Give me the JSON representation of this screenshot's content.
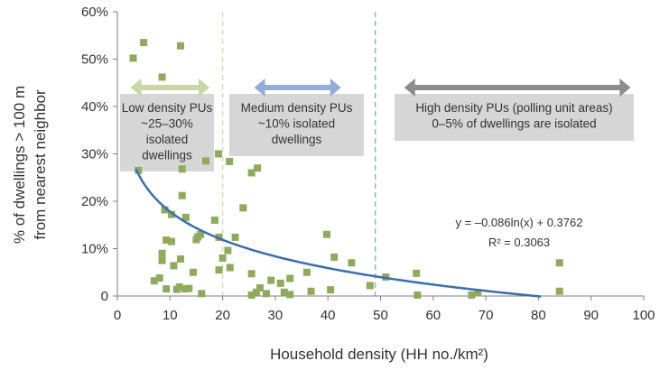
{
  "chart_data": {
    "type": "scatter",
    "xlabel": "Household density (HH no./km²)",
    "ylabel": [
      "% of dwellings > 100 m",
      "from nearest neighbor"
    ],
    "xlim": [
      0,
      100
    ],
    "ylim": [
      0,
      60
    ],
    "x_ticks": [
      "0",
      "10",
      "20",
      "30",
      "40",
      "50",
      "60",
      "70",
      "80",
      "90",
      "100"
    ],
    "y_ticks": [
      "0",
      "10%",
      "20%",
      "30%",
      "40%",
      "50%",
      "60%"
    ],
    "grid": false,
    "marker_color": "#8FAA5F",
    "points": [
      [
        3,
        50.2
      ],
      [
        5,
        53.5
      ],
      [
        8.5,
        46.2
      ],
      [
        12,
        52.8
      ],
      [
        4,
        26.5
      ],
      [
        12.3,
        26.8
      ],
      [
        12.3,
        21.2
      ],
      [
        9,
        18.2
      ],
      [
        10.3,
        17.2
      ],
      [
        13,
        16.6
      ],
      [
        9.3,
        11.8
      ],
      [
        8.5,
        9
      ],
      [
        8.5,
        7.5
      ],
      [
        10.3,
        11.5
      ],
      [
        15,
        11.9
      ],
      [
        15.8,
        13
      ],
      [
        12,
        7.8
      ],
      [
        8,
        3.8
      ],
      [
        9.3,
        1.5
      ],
      [
        10.7,
        6.4
      ],
      [
        11.8,
        1.9
      ],
      [
        12.8,
        1.5
      ],
      [
        13.6,
        1.6
      ],
      [
        14.4,
        5
      ],
      [
        15.3,
        12.5
      ],
      [
        16,
        0.5
      ],
      [
        7,
        3.2
      ],
      [
        11.3,
        1.4
      ],
      [
        16.8,
        28.5
      ],
      [
        19.2,
        30
      ],
      [
        21.3,
        28.4
      ],
      [
        23.9,
        18.6
      ],
      [
        18.5,
        16
      ],
      [
        19.3,
        12.4
      ],
      [
        20,
        8
      ],
      [
        21,
        9.6
      ],
      [
        22.4,
        12.4
      ],
      [
        19.3,
        5.5
      ],
      [
        21.4,
        6
      ],
      [
        25.5,
        26
      ],
      [
        26.6,
        27
      ],
      [
        25.5,
        4.7
      ],
      [
        27.1,
        1.7
      ],
      [
        25.5,
        0.2
      ],
      [
        26.4,
        0.8
      ],
      [
        28.3,
        0.5
      ],
      [
        29.2,
        3.3
      ],
      [
        31,
        2.7
      ],
      [
        31.7,
        0.8
      ],
      [
        32.8,
        3.7
      ],
      [
        32.8,
        0.3
      ],
      [
        36,
        5
      ],
      [
        36.8,
        1
      ],
      [
        39.8,
        13
      ],
      [
        40.5,
        1.3
      ],
      [
        41.2,
        8.2
      ],
      [
        44.5,
        7
      ],
      [
        48,
        2.2
      ],
      [
        51,
        4
      ],
      [
        56.8,
        4.8
      ],
      [
        57,
        0.2
      ],
      [
        67.3,
        0.2
      ],
      [
        68.5,
        0.7
      ],
      [
        84,
        7
      ],
      [
        84,
        1
      ]
    ],
    "trendline": {
      "type": "logarithmic",
      "a": -0.086,
      "b": 0.3762,
      "x_range": [
        3.5,
        80.5
      ],
      "color": "#3C6EAB",
      "equation": "y = –0.086ln(x) + 0.3762",
      "r2": "R² = 0.3063"
    },
    "density_bands": [
      {
        "label": [
          "Low density PUs",
          "~25–30%",
          "isolated",
          "dwellings"
        ],
        "range": [
          2.5,
          17.5
        ],
        "arrow_color": "#C9D6A8"
      },
      {
        "label": [
          "Medium density PUs",
          "~10% isolated",
          "dwellings"
        ],
        "range": [
          26,
          42.5
        ],
        "arrow_color": "#94ACD6"
      },
      {
        "label": [
          "High density PUs (polling unit areas)",
          "0–5% of dwellings are isolated"
        ],
        "range": [
          54.5,
          97.5
        ],
        "arrow_color": "#8C8C8C"
      }
    ],
    "dividers": [
      {
        "x": 20,
        "color": "#DDD9B8"
      },
      {
        "x": 49,
        "color": "#8FB0D6"
      }
    ],
    "box_fill": "#D6D6D6"
  }
}
